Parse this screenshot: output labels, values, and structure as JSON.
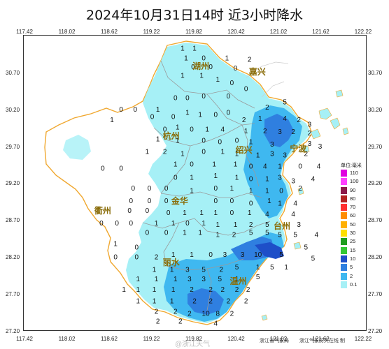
{
  "title": "2024年10月31日14时  近3小时降水",
  "axes": {
    "lon_ticks": [
      "117.42",
      "118.02",
      "118.62",
      "119.22",
      "119.82",
      "120.42",
      "121.02",
      "121.62",
      "122.22"
    ],
    "lat_ticks": [
      "30.70",
      "30.20",
      "29.70",
      "29.20",
      "28.70",
      "28.20",
      "27.70",
      "27.20"
    ]
  },
  "cities": [
    {
      "name": "湖州",
      "lon": 119.92,
      "lat": 30.79
    },
    {
      "name": "嘉兴",
      "lon": 120.72,
      "lat": 30.72
    },
    {
      "name": "杭州",
      "lon": 119.5,
      "lat": 29.85
    },
    {
      "name": "绍兴",
      "lon": 120.53,
      "lat": 29.66
    },
    {
      "name": "宁波",
      "lon": 121.3,
      "lat": 29.68
    },
    {
      "name": "金华",
      "lon": 119.62,
      "lat": 28.97
    },
    {
      "name": "衢州",
      "lon": 118.53,
      "lat": 28.83
    },
    {
      "name": "台州",
      "lon": 121.07,
      "lat": 28.63
    },
    {
      "name": "丽水",
      "lon": 119.5,
      "lat": 28.13
    },
    {
      "name": "温州",
      "lon": 120.45,
      "lat": 27.88
    }
  ],
  "stations": [
    {
      "lon": 119.65,
      "lat": 31.05,
      "v": "1"
    },
    {
      "lon": 119.82,
      "lat": 31.05,
      "v": "1"
    },
    {
      "lon": 119.7,
      "lat": 30.92,
      "v": "1"
    },
    {
      "lon": 119.95,
      "lat": 30.92,
      "v": "0"
    },
    {
      "lon": 120.28,
      "lat": 30.92,
      "v": "1"
    },
    {
      "lon": 120.6,
      "lat": 30.9,
      "v": "2"
    },
    {
      "lon": 119.8,
      "lat": 30.8,
      "v": "0"
    },
    {
      "lon": 120.05,
      "lat": 30.8,
      "v": "0"
    },
    {
      "lon": 120.4,
      "lat": 30.78,
      "v": "0"
    },
    {
      "lon": 119.65,
      "lat": 30.68,
      "v": "1"
    },
    {
      "lon": 119.92,
      "lat": 30.68,
      "v": "1"
    },
    {
      "lon": 120.15,
      "lat": 30.63,
      "v": "1"
    },
    {
      "lon": 120.35,
      "lat": 30.58,
      "v": "0"
    },
    {
      "lon": 120.55,
      "lat": 30.5,
      "v": "0"
    },
    {
      "lon": 118.78,
      "lat": 30.22,
      "v": "0"
    },
    {
      "lon": 118.98,
      "lat": 30.22,
      "v": "0"
    },
    {
      "lon": 119.3,
      "lat": 30.22,
      "v": "1"
    },
    {
      "lon": 119.55,
      "lat": 30.38,
      "v": "0"
    },
    {
      "lon": 119.72,
      "lat": 30.38,
      "v": "0"
    },
    {
      "lon": 119.95,
      "lat": 30.4,
      "v": "0"
    },
    {
      "lon": 120.3,
      "lat": 30.4,
      "v": "0"
    },
    {
      "lon": 120.85,
      "lat": 30.25,
      "v": "2"
    },
    {
      "lon": 121.1,
      "lat": 30.32,
      "v": "5"
    },
    {
      "lon": 118.65,
      "lat": 30.08,
      "v": "1"
    },
    {
      "lon": 119.22,
      "lat": 30.12,
      "v": "0"
    },
    {
      "lon": 119.52,
      "lat": 30.12,
      "v": "0"
    },
    {
      "lon": 119.72,
      "lat": 30.18,
      "v": "1"
    },
    {
      "lon": 119.9,
      "lat": 30.15,
      "v": "1"
    },
    {
      "lon": 120.12,
      "lat": 30.15,
      "v": "0"
    },
    {
      "lon": 120.3,
      "lat": 30.18,
      "v": "0"
    },
    {
      "lon": 120.52,
      "lat": 30.08,
      "v": "2"
    },
    {
      "lon": 120.75,
      "lat": 30.1,
      "v": "1"
    },
    {
      "lon": 121.1,
      "lat": 30.1,
      "v": "4"
    },
    {
      "lon": 121.3,
      "lat": 30.08,
      "v": "2"
    },
    {
      "lon": 121.45,
      "lat": 30.02,
      "v": "3"
    },
    {
      "lon": 119.4,
      "lat": 29.95,
      "v": "0"
    },
    {
      "lon": 119.58,
      "lat": 29.98,
      "v": "1"
    },
    {
      "lon": 119.78,
      "lat": 29.95,
      "v": "0"
    },
    {
      "lon": 120.0,
      "lat": 29.95,
      "v": "1"
    },
    {
      "lon": 120.22,
      "lat": 29.95,
      "v": "4"
    },
    {
      "lon": 120.55,
      "lat": 29.93,
      "v": "1"
    },
    {
      "lon": 120.82,
      "lat": 29.93,
      "v": "2"
    },
    {
      "lon": 121.03,
      "lat": 29.92,
      "v": "3"
    },
    {
      "lon": 121.22,
      "lat": 29.92,
      "v": "2"
    },
    {
      "lon": 121.45,
      "lat": 29.9,
      "v": "2"
    },
    {
      "lon": 119.3,
      "lat": 29.82,
      "v": "1"
    },
    {
      "lon": 119.58,
      "lat": 29.8,
      "v": "1"
    },
    {
      "lon": 119.95,
      "lat": 29.8,
      "v": "0"
    },
    {
      "lon": 120.18,
      "lat": 29.78,
      "v": "0"
    },
    {
      "lon": 120.42,
      "lat": 29.8,
      "v": "0"
    },
    {
      "lon": 120.62,
      "lat": 29.78,
      "v": "1"
    },
    {
      "lon": 120.92,
      "lat": 29.75,
      "v": "3"
    },
    {
      "lon": 121.45,
      "lat": 29.76,
      "v": "3"
    },
    {
      "lon": 121.6,
      "lat": 29.72,
      "v": "3"
    },
    {
      "lon": 119.15,
      "lat": 29.65,
      "v": "1"
    },
    {
      "lon": 119.4,
      "lat": 29.65,
      "v": "2"
    },
    {
      "lon": 119.65,
      "lat": 29.62,
      "v": "1"
    },
    {
      "lon": 119.95,
      "lat": 29.65,
      "v": "0"
    },
    {
      "lon": 120.22,
      "lat": 29.65,
      "v": "1"
    },
    {
      "lon": 120.42,
      "lat": 29.62,
      "v": "1"
    },
    {
      "lon": 120.72,
      "lat": 29.6,
      "v": "1"
    },
    {
      "lon": 120.92,
      "lat": 29.62,
      "v": "3"
    },
    {
      "lon": 121.1,
      "lat": 29.6,
      "v": "3"
    },
    {
      "lon": 121.4,
      "lat": 29.62,
      "v": "2"
    },
    {
      "lon": 118.52,
      "lat": 29.42,
      "v": "0"
    },
    {
      "lon": 118.78,
      "lat": 29.42,
      "v": "0"
    },
    {
      "lon": 119.55,
      "lat": 29.48,
      "v": "1"
    },
    {
      "lon": 119.78,
      "lat": 29.48,
      "v": "0"
    },
    {
      "lon": 120.1,
      "lat": 29.48,
      "v": "1"
    },
    {
      "lon": 120.4,
      "lat": 29.48,
      "v": "1"
    },
    {
      "lon": 120.62,
      "lat": 29.45,
      "v": "0"
    },
    {
      "lon": 120.82,
      "lat": 29.45,
      "v": "4"
    },
    {
      "lon": 121.03,
      "lat": 29.45,
      "v": "1"
    },
    {
      "lon": 121.32,
      "lat": 29.45,
      "v": "0"
    },
    {
      "lon": 121.58,
      "lat": 29.45,
      "v": "4"
    },
    {
      "lon": 119.55,
      "lat": 29.3,
      "v": "0"
    },
    {
      "lon": 119.78,
      "lat": 29.3,
      "v": "1"
    },
    {
      "lon": 120.12,
      "lat": 29.32,
      "v": "1"
    },
    {
      "lon": 120.42,
      "lat": 29.3,
      "v": "1"
    },
    {
      "lon": 120.62,
      "lat": 29.28,
      "v": "0"
    },
    {
      "lon": 120.85,
      "lat": 29.28,
      "v": "1"
    },
    {
      "lon": 121.03,
      "lat": 29.3,
      "v": "3"
    },
    {
      "lon": 121.22,
      "lat": 29.25,
      "v": "3"
    },
    {
      "lon": 121.5,
      "lat": 29.28,
      "v": "4"
    },
    {
      "lon": 118.95,
      "lat": 29.15,
      "v": "0"
    },
    {
      "lon": 119.18,
      "lat": 29.15,
      "v": "0"
    },
    {
      "lon": 119.42,
      "lat": 29.15,
      "v": "0"
    },
    {
      "lon": 119.78,
      "lat": 29.12,
      "v": "1"
    },
    {
      "lon": 120.12,
      "lat": 29.15,
      "v": "0"
    },
    {
      "lon": 120.35,
      "lat": 29.15,
      "v": "1"
    },
    {
      "lon": 120.62,
      "lat": 29.12,
      "v": "1"
    },
    {
      "lon": 120.85,
      "lat": 29.12,
      "v": "1"
    },
    {
      "lon": 121.05,
      "lat": 29.12,
      "v": "0"
    },
    {
      "lon": 121.32,
      "lat": 29.15,
      "v": "2"
    },
    {
      "lon": 118.92,
      "lat": 28.98,
      "v": "0"
    },
    {
      "lon": 119.18,
      "lat": 28.98,
      "v": "0"
    },
    {
      "lon": 119.42,
      "lat": 28.98,
      "v": "0"
    },
    {
      "lon": 120.12,
      "lat": 28.98,
      "v": "0"
    },
    {
      "lon": 120.35,
      "lat": 28.98,
      "v": "0"
    },
    {
      "lon": 120.62,
      "lat": 28.95,
      "v": "0"
    },
    {
      "lon": 120.88,
      "lat": 28.98,
      "v": "1"
    },
    {
      "lon": 121.03,
      "lat": 28.95,
      "v": "1"
    },
    {
      "lon": 121.25,
      "lat": 28.95,
      "v": "4"
    },
    {
      "lon": 118.9,
      "lat": 28.85,
      "v": "0"
    },
    {
      "lon": 119.15,
      "lat": 28.85,
      "v": "0"
    },
    {
      "lon": 119.45,
      "lat": 28.82,
      "v": "0"
    },
    {
      "lon": 119.68,
      "lat": 28.82,
      "v": "1"
    },
    {
      "lon": 119.92,
      "lat": 28.82,
      "v": "1"
    },
    {
      "lon": 120.12,
      "lat": 28.82,
      "v": "1"
    },
    {
      "lon": 120.35,
      "lat": 28.82,
      "v": "0"
    },
    {
      "lon": 120.6,
      "lat": 28.82,
      "v": "1"
    },
    {
      "lon": 120.85,
      "lat": 28.8,
      "v": "4"
    },
    {
      "lon": 121.22,
      "lat": 28.8,
      "v": "4"
    },
    {
      "lon": 118.5,
      "lat": 28.68,
      "v": "0"
    },
    {
      "lon": 118.72,
      "lat": 28.68,
      "v": "0"
    },
    {
      "lon": 118.92,
      "lat": 28.68,
      "v": "0"
    },
    {
      "lon": 119.28,
      "lat": 28.68,
      "v": "1"
    },
    {
      "lon": 119.52,
      "lat": 28.68,
      "v": "1"
    },
    {
      "lon": 119.72,
      "lat": 28.68,
      "v": "0"
    },
    {
      "lon": 119.95,
      "lat": 28.68,
      "v": "1"
    },
    {
      "lon": 120.15,
      "lat": 28.66,
      "v": "1"
    },
    {
      "lon": 120.4,
      "lat": 28.66,
      "v": "1"
    },
    {
      "lon": 120.62,
      "lat": 28.66,
      "v": "2"
    },
    {
      "lon": 120.85,
      "lat": 28.66,
      "v": "5"
    },
    {
      "lon": 121.3,
      "lat": 28.66,
      "v": "3"
    },
    {
      "lon": 119.15,
      "lat": 28.55,
      "v": "0"
    },
    {
      "lon": 119.42,
      "lat": 28.55,
      "v": "0"
    },
    {
      "lon": 119.68,
      "lat": 28.55,
      "v": "1"
    },
    {
      "lon": 119.9,
      "lat": 28.55,
      "v": "1"
    },
    {
      "lon": 120.15,
      "lat": 28.52,
      "v": "1"
    },
    {
      "lon": 120.38,
      "lat": 28.52,
      "v": "2"
    },
    {
      "lon": 120.62,
      "lat": 28.55,
      "v": "5"
    },
    {
      "lon": 120.85,
      "lat": 28.55,
      "v": "5"
    },
    {
      "lon": 121.03,
      "lat": 28.52,
      "v": "5"
    },
    {
      "lon": 121.25,
      "lat": 28.52,
      "v": "5"
    },
    {
      "lon": 121.55,
      "lat": 28.52,
      "v": "4"
    },
    {
      "lon": 118.7,
      "lat": 28.4,
      "v": "1"
    },
    {
      "lon": 119.0,
      "lat": 28.35,
      "v": "0"
    },
    {
      "lon": 118.7,
      "lat": 28.22,
      "v": "0"
    },
    {
      "lon": 119.0,
      "lat": 28.22,
      "v": "0"
    },
    {
      "lon": 119.28,
      "lat": 28.22,
      "v": "2"
    },
    {
      "lon": 119.52,
      "lat": 28.25,
      "v": "1"
    },
    {
      "lon": 119.78,
      "lat": 28.25,
      "v": "1"
    },
    {
      "lon": 120.05,
      "lat": 28.25,
      "v": "0"
    },
    {
      "lon": 120.25,
      "lat": 28.25,
      "v": "3"
    },
    {
      "lon": 120.5,
      "lat": 28.25,
      "v": "3"
    },
    {
      "lon": 120.72,
      "lat": 28.25,
      "v": "10"
    },
    {
      "lon": 121.05,
      "lat": 28.25,
      "v": "5"
    },
    {
      "lon": 121.4,
      "lat": 28.35,
      "v": "5"
    },
    {
      "lon": 121.5,
      "lat": 28.2,
      "v": "5"
    },
    {
      "lon": 119.25,
      "lat": 28.05,
      "v": "1"
    },
    {
      "lon": 119.5,
      "lat": 28.05,
      "v": "1"
    },
    {
      "lon": 119.72,
      "lat": 28.05,
      "v": "3"
    },
    {
      "lon": 119.95,
      "lat": 28.05,
      "v": "5"
    },
    {
      "lon": 120.2,
      "lat": 28.05,
      "v": "2"
    },
    {
      "lon": 120.42,
      "lat": 28.08,
      "v": "5"
    },
    {
      "lon": 120.72,
      "lat": 28.08,
      "v": "1"
    },
    {
      "lon": 120.92,
      "lat": 28.08,
      "v": "5"
    },
    {
      "lon": 121.12,
      "lat": 28.08,
      "v": "1"
    },
    {
      "lon": 119.02,
      "lat": 27.92,
      "v": "1"
    },
    {
      "lon": 119.28,
      "lat": 27.92,
      "v": "1"
    },
    {
      "lon": 119.55,
      "lat": 27.92,
      "v": "1"
    },
    {
      "lon": 119.75,
      "lat": 27.92,
      "v": "3"
    },
    {
      "lon": 119.95,
      "lat": 27.92,
      "v": "3"
    },
    {
      "lon": 120.18,
      "lat": 27.92,
      "v": "5"
    },
    {
      "lon": 120.42,
      "lat": 27.92,
      "v": "1"
    },
    {
      "lon": 120.72,
      "lat": 27.95,
      "v": "5"
    },
    {
      "lon": 118.82,
      "lat": 27.78,
      "v": "1"
    },
    {
      "lon": 119.02,
      "lat": 27.78,
      "v": "1"
    },
    {
      "lon": 119.25,
      "lat": 27.78,
      "v": "1"
    },
    {
      "lon": 119.52,
      "lat": 27.78,
      "v": "1"
    },
    {
      "lon": 119.78,
      "lat": 27.78,
      "v": "2"
    },
    {
      "lon": 120.05,
      "lat": 27.78,
      "v": "2"
    },
    {
      "lon": 120.22,
      "lat": 27.78,
      "v": "2"
    },
    {
      "lon": 120.42,
      "lat": 27.78,
      "v": "2"
    },
    {
      "lon": 120.58,
      "lat": 27.78,
      "v": "2"
    },
    {
      "lon": 119.02,
      "lat": 27.62,
      "v": "1"
    },
    {
      "lon": 119.25,
      "lat": 27.62,
      "v": "1"
    },
    {
      "lon": 119.5,
      "lat": 27.62,
      "v": "1"
    },
    {
      "lon": 119.82,
      "lat": 27.62,
      "v": "2"
    },
    {
      "lon": 120.05,
      "lat": 27.62,
      "v": "2"
    },
    {
      "lon": 120.3,
      "lat": 27.62,
      "v": "2"
    },
    {
      "lon": 120.55,
      "lat": 27.62,
      "v": "2"
    },
    {
      "lon": 119.28,
      "lat": 27.48,
      "v": "2"
    },
    {
      "lon": 119.55,
      "lat": 27.48,
      "v": "2"
    },
    {
      "lon": 119.75,
      "lat": 27.45,
      "v": "2"
    },
    {
      "lon": 119.98,
      "lat": 27.45,
      "v": "10"
    },
    {
      "lon": 120.15,
      "lat": 27.45,
      "v": "8"
    },
    {
      "lon": 120.35,
      "lat": 27.45,
      "v": "2"
    },
    {
      "lon": 119.3,
      "lat": 27.35,
      "v": "2"
    },
    {
      "lon": 119.62,
      "lat": 27.35,
      "v": "2"
    },
    {
      "lon": 120.12,
      "lat": 27.32,
      "v": "4"
    }
  ],
  "legend": {
    "title": "单位:毫米",
    "items": [
      {
        "label": "110",
        "color": "#e000e0"
      },
      {
        "label": "100",
        "color": "#ff40ff"
      },
      {
        "label": "90",
        "color": "#8c1a4a"
      },
      {
        "label": "80",
        "color": "#b22222"
      },
      {
        "label": "70",
        "color": "#ff3030"
      },
      {
        "label": "60",
        "color": "#ff8c00"
      },
      {
        "label": "50",
        "color": "#ffb000"
      },
      {
        "label": "30",
        "color": "#ffe000"
      },
      {
        "label": "25",
        "color": "#1f9e1f"
      },
      {
        "label": "15",
        "color": "#35c835"
      },
      {
        "label": "10",
        "color": "#1e4fc8"
      },
      {
        "label": "5",
        "color": "#2f7fe0"
      },
      {
        "label": "2",
        "color": "#3fb8f0"
      },
      {
        "label": "0.1",
        "color": "#a6f0f6"
      }
    ]
  },
  "footer": {
    "agency": "浙江省气象局",
    "producer": "浙江气象防灾在线 制",
    "watermark": "@浙江天气"
  },
  "colors": {
    "province_fill": "#ffffff",
    "light_rain": "#a6f0f6",
    "moderate_rain": "#3fb8f0",
    "heavy_rain": "#2f7fe0",
    "province_border": "#f0a830",
    "city_label": "#8a6d0a"
  }
}
